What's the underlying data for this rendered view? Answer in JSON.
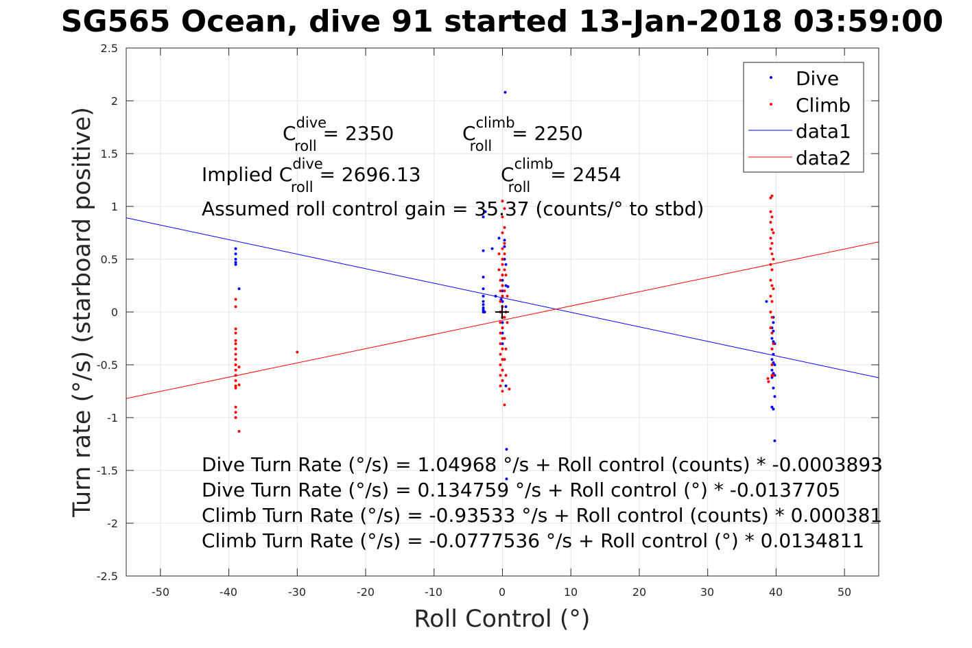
{
  "chart_data": {
    "type": "scatter",
    "title": "SG565 Ocean, dive 91 started 13-Jan-2018 03:59:00",
    "xlabel": "Roll Control (°)",
    "ylabel": "Turn rate (°/s) (starboard positive)",
    "xlim": [
      -55,
      55
    ],
    "ylim": [
      -2.5,
      2.5
    ],
    "xticks": [
      "-50",
      "-40",
      "-30",
      "-20",
      "-10",
      "0",
      "10",
      "20",
      "30",
      "40",
      "50"
    ],
    "yticks": [
      "-2.5",
      "-2",
      "-1.5",
      "-1",
      "-0.5",
      "0",
      "0.5",
      "1",
      "1.5",
      "2",
      "2.5"
    ],
    "grid": true,
    "legend_position": "top-right",
    "legend": [
      "Dive",
      "Climb",
      "data1",
      "data2"
    ],
    "series": [
      {
        "name": "Dive",
        "color": "#0000ff",
        "marker": "dot",
        "x": [
          -39,
          -39,
          -39,
          -39,
          -39,
          -38.5,
          -2.8,
          -2.8,
          -2.8,
          -2.8,
          -2.8,
          -2.8,
          -2.8,
          -2.8,
          -2.8,
          -2.8,
          -2.6,
          -2.5,
          -1.5,
          -1,
          -0.5,
          -0.2,
          0,
          0,
          0,
          0,
          0,
          0,
          0,
          0,
          0,
          0,
          0,
          0,
          0,
          0,
          0,
          0.3,
          0.3,
          0.3,
          0.4,
          0.5,
          0.5,
          0.5,
          0.5,
          0.6,
          0.6,
          0.8,
          38.6,
          39.4,
          39.4,
          39.4,
          39.4,
          39.4,
          39.4,
          39.4,
          39.6,
          39.6,
          39.6,
          39.6,
          39.6,
          39.6,
          39.6,
          39.6,
          39.6,
          39.8,
          39.8,
          39.8,
          39.8,
          39.8
        ],
        "y": [
          0.6,
          0.55,
          0.5,
          0.47,
          0.45,
          0.22,
          0.9,
          0.58,
          0.33,
          0.22,
          0.15,
          0.1,
          0.07,
          0.04,
          0.02,
          0.0,
          0.0,
          0.95,
          0.6,
          0.15,
          0.7,
          0.12,
          0.35,
          0.3,
          0.25,
          0.2,
          0.15,
          0.1,
          0.05,
          -0.05,
          -0.1,
          -0.15,
          -0.2,
          -0.3,
          -0.45,
          -0.55,
          -0.65,
          0.68,
          0.62,
          0.5,
          2.08,
          0.45,
          0.25,
          0.05,
          -0.7,
          -1.3,
          -1.58,
          0.24,
          0.1,
          -0.15,
          -0.25,
          -0.35,
          -0.45,
          -0.55,
          -0.62,
          -0.9,
          -0.05,
          -0.1,
          -0.18,
          -0.28,
          -0.4,
          -0.48,
          -0.58,
          -0.72,
          -0.92,
          -0.3,
          -0.5,
          -0.6,
          -0.8,
          -1.22
        ]
      },
      {
        "name": "Climb",
        "color": "#ff0000",
        "marker": "dot",
        "x": [
          -39,
          -39,
          -39,
          -39,
          -39,
          -39,
          -39,
          -39,
          -39,
          -39,
          -39,
          -39,
          -39,
          -39,
          -39,
          -39,
          -39,
          -39,
          -38.5,
          -38.5,
          -38.5,
          -30,
          -0.5,
          -0.5,
          -0.3,
          -0.3,
          -0.3,
          -0.3,
          -0.3,
          -0.3,
          -0.3,
          -0.3,
          -0.3,
          -0.3,
          -0.3,
          0,
          0,
          0,
          0,
          0,
          0,
          0,
          0,
          0,
          0,
          0,
          0,
          0,
          0,
          0,
          0,
          0,
          0,
          0.3,
          0.3,
          0.3,
          0.3,
          0.3,
          0.3,
          0.3,
          0.3,
          0.3,
          0.3,
          0.5,
          0.5,
          0.5,
          0.5,
          0.7,
          0.7,
          1,
          39.2,
          39.2,
          39.2,
          39.2,
          39.2,
          39.2,
          39.2,
          39.2,
          39.2,
          39.2,
          39.4,
          39.4,
          39.4,
          39.4,
          39.4,
          39.4,
          39.4,
          39.4,
          39.4,
          39.4,
          39.4,
          39.4,
          39.4,
          39.6,
          39.6,
          39.6,
          39.6,
          39.6,
          38.8,
          38.9
        ],
        "y": [
          0.12,
          0.05,
          -0.16,
          -0.2,
          -0.27,
          -0.3,
          -0.35,
          -0.4,
          -0.45,
          -0.5,
          -0.55,
          -0.6,
          -0.65,
          -0.7,
          -0.72,
          -0.9,
          -0.95,
          -1.0,
          -0.52,
          -0.69,
          -1.13,
          -0.38,
          0.55,
          0.4,
          0.3,
          0.2,
          0.1,
          0.0,
          -0.1,
          -0.2,
          -0.3,
          -0.4,
          -0.5,
          -0.6,
          -0.7,
          1.05,
          0.9,
          0.75,
          0.6,
          0.5,
          0.45,
          0.35,
          0.25,
          0.15,
          0.05,
          -0.05,
          -0.15,
          -0.25,
          -0.35,
          -0.45,
          -0.55,
          -0.65,
          -0.75,
          0.98,
          0.8,
          0.65,
          0.55,
          0.4,
          0.2,
          -0.05,
          -0.25,
          -0.45,
          -0.88,
          0.35,
          0.0,
          -0.35,
          -0.6,
          0.15,
          -0.1,
          -0.73,
          1.08,
          0.95,
          0.85,
          0.7,
          0.6,
          0.45,
          0.3,
          0.15,
          0.0,
          -0.15,
          1.1,
          0.9,
          0.78,
          0.65,
          0.55,
          0.4,
          0.25,
          0.1,
          -0.05,
          -0.2,
          -0.35,
          -0.5,
          -0.6,
          0.75,
          0.5,
          0.22,
          -0.3,
          -0.6,
          -0.63,
          -0.66
        ]
      },
      {
        "name": "data1",
        "color": "#0000ff",
        "type": "line",
        "x": [
          -55,
          55
        ],
        "y": [
          0.892137,
          -0.622618
        ]
      },
      {
        "name": "data2",
        "color": "#ff0000",
        "type": "line",
        "x": [
          -55,
          55
        ],
        "y": [
          -0.819214,
          0.663707
        ]
      }
    ],
    "annotations": {
      "c_roll_dive_label": "C",
      "c_roll_dive_sup": "dive",
      "c_roll_dive_sub": "roll",
      "c_roll_dive_value": " = 2350",
      "c_roll_climb_label": "C",
      "c_roll_climb_sup": "climb",
      "c_roll_climb_sub": "roll",
      "c_roll_climb_value": " = 2250",
      "implied_prefix": "Implied C",
      "implied_dive_sup": "dive",
      "implied_dive_sub": "roll",
      "implied_dive_value": " = 2696.13",
      "implied_climb_label": "C",
      "implied_climb_sup": "climb",
      "implied_climb_sub": "roll",
      "implied_climb_value": " = 2454",
      "gain": "Assumed roll control gain = 35.37 (counts/° to stbd)",
      "eq1": "Dive Turn Rate (°/s) = 1.04968 °/s + Roll control (counts) * -0.0003893",
      "eq2": "Dive Turn Rate (°/s) = 0.134759 °/s + Roll control (°) * -0.0137705",
      "eq3": "Climb Turn Rate (°/s) = -0.93533 °/s + Roll control (counts) * 0.000381",
      "eq4": "Climb Turn Rate (°/s) = -0.0777536 °/s + Roll control (°) * 0.0134811"
    }
  }
}
